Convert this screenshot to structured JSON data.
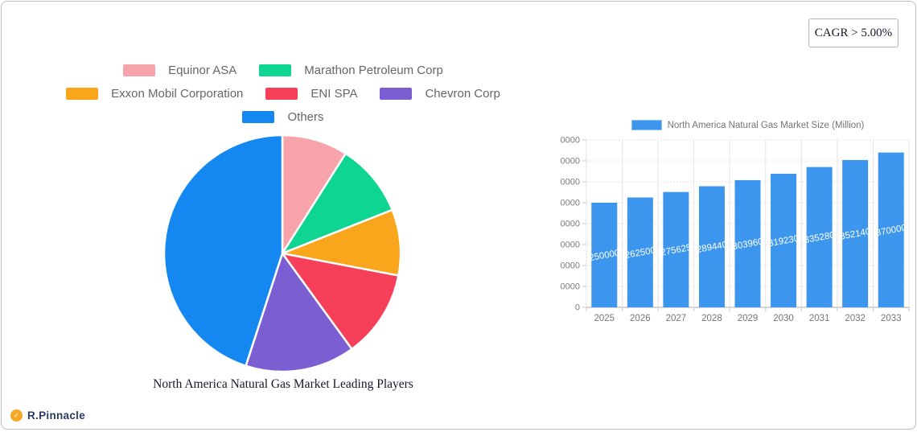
{
  "badge": {
    "label": "CAGR > 5.00%"
  },
  "logo": {
    "text": "R.Pinnacle",
    "mark_color": "#f5a623"
  },
  "chart_data": [
    {
      "type": "pie",
      "title": "North America Natural Gas Market Leading Players",
      "labels": [
        "Equinor ASA",
        "Marathon Petroleum Corp",
        "Exxon Mobil Corporation",
        "ENI SPA",
        "Chevron Corp",
        "Others"
      ],
      "values": [
        9,
        10,
        9,
        12,
        15,
        45
      ],
      "unit": "percent-share",
      "colors": [
        "#f7a3aa",
        "#0fd592",
        "#faa61c",
        "#f6405a",
        "#7b5ed2",
        "#1488f0"
      ],
      "legend_position": "top",
      "legend_rows": [
        [
          0,
          1
        ],
        [
          2,
          3,
          4
        ],
        [
          5
        ]
      ],
      "start_angle": "top",
      "direction": "clockwise"
    },
    {
      "type": "bar",
      "legend": "North America Natural Gas Market Size (Million)",
      "categories": [
        "2025",
        "2026",
        "2027",
        "2028",
        "2029",
        "2030",
        "2031",
        "2032",
        "2033"
      ],
      "values": [
        250000,
        262500,
        275625,
        289440,
        303960,
        319230,
        335280,
        352140,
        370000
      ],
      "bar_color": "#3c96ed",
      "value_label_color": "#ffffff",
      "xlabel": "",
      "ylabel": "",
      "ylim": [
        0,
        400000
      ],
      "ytick_step": 50000,
      "grid": true,
      "legend_position": "top"
    }
  ]
}
